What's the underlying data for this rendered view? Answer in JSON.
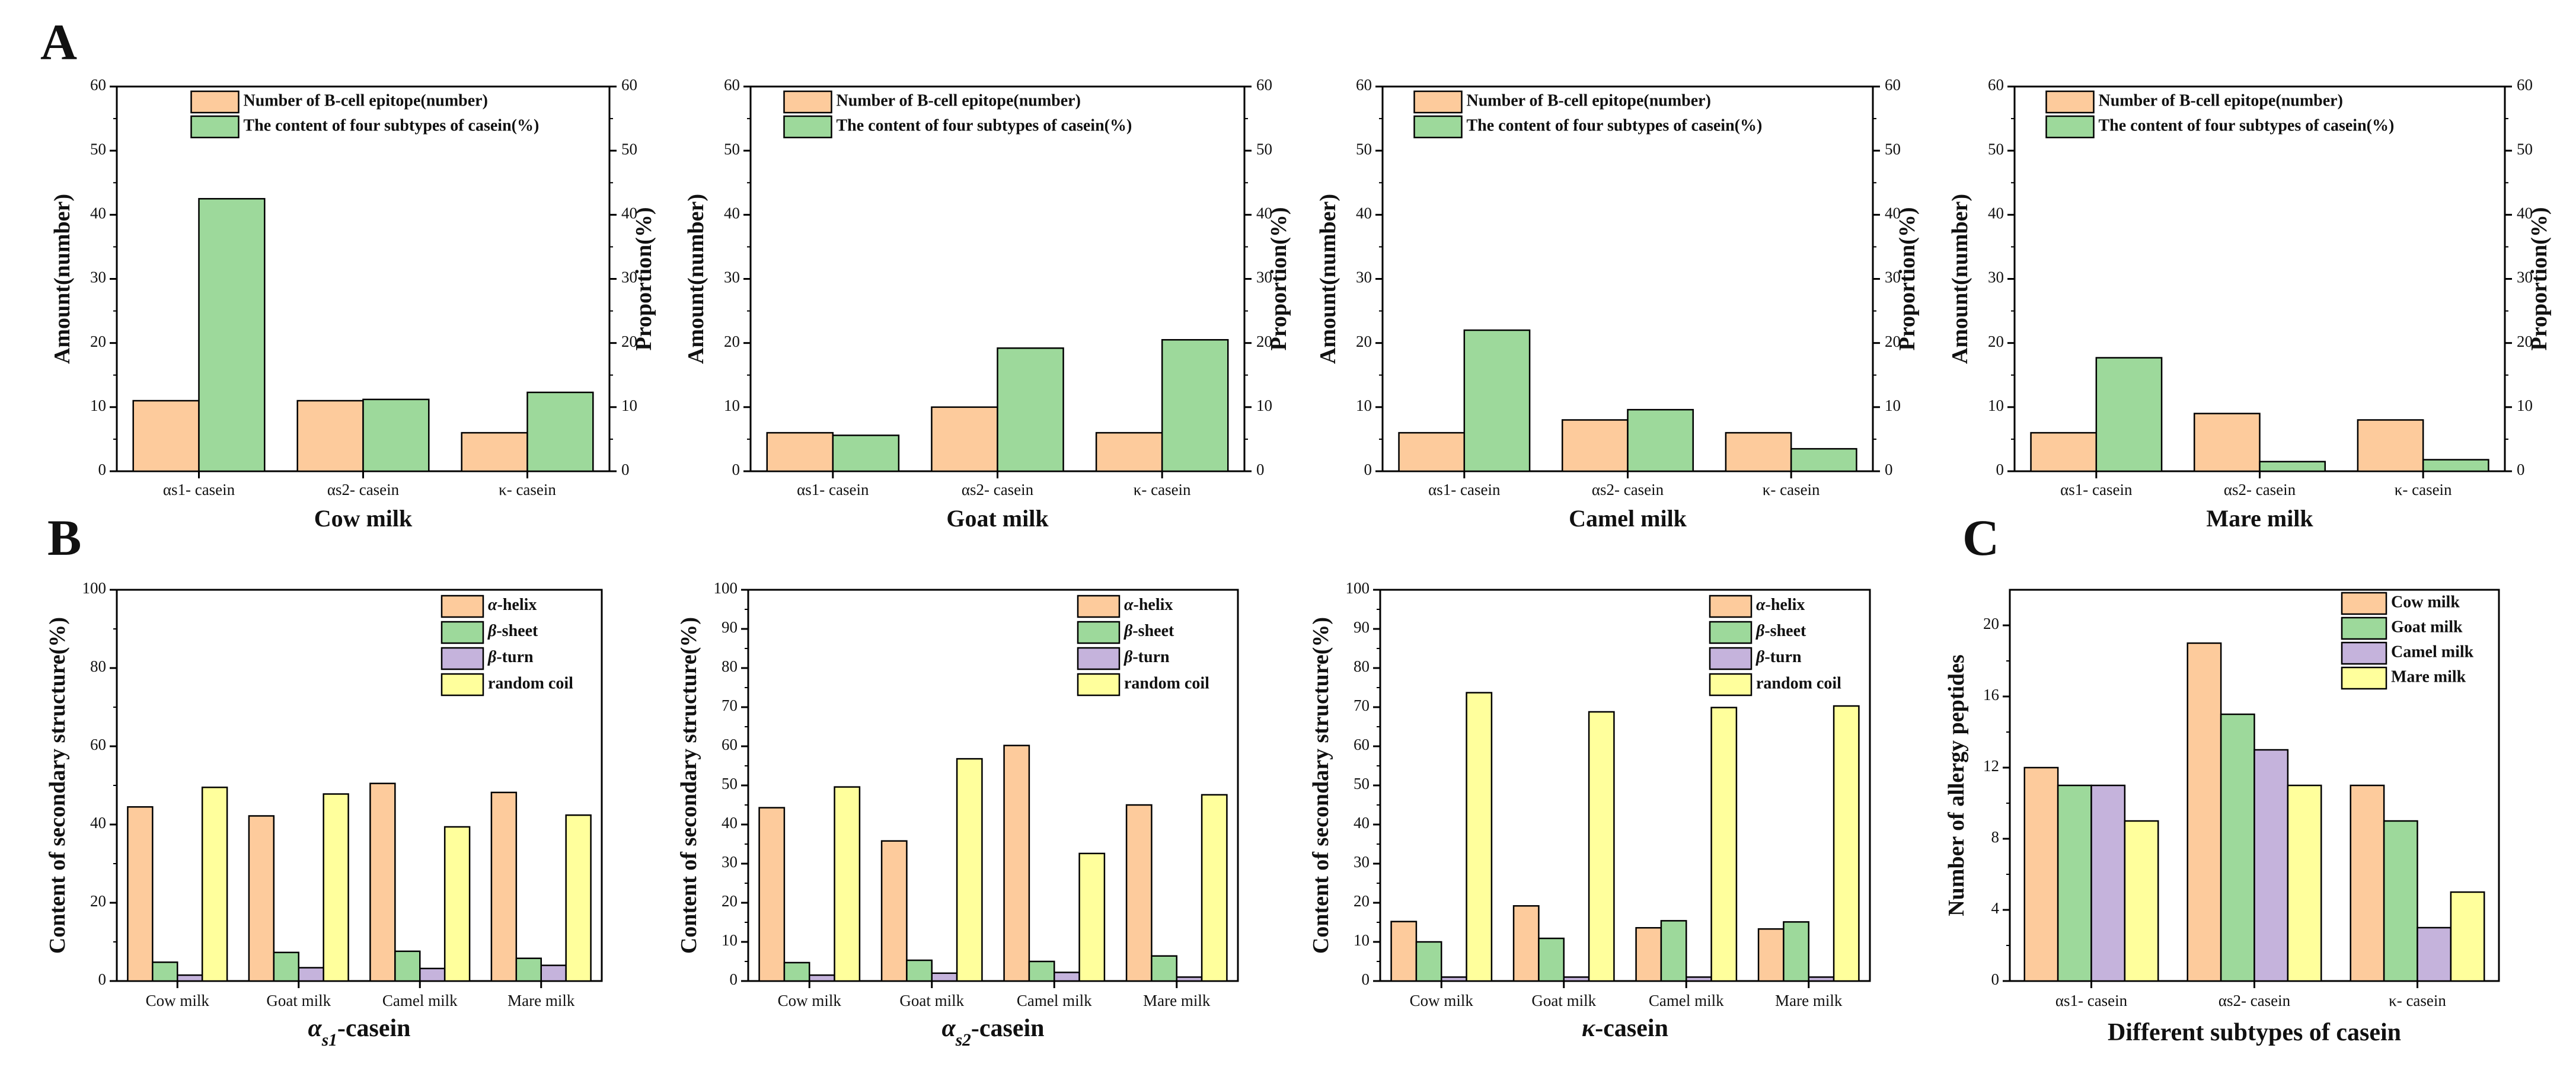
{
  "figure": {
    "panel_labels": [
      "A",
      "B",
      "C"
    ]
  },
  "chart_data": [
    {
      "type": "bar",
      "panel": "A",
      "title": "Cow milk",
      "xlabel": "Cow milk",
      "ylabel": "Amount(number)",
      "y2label": "Proportion(%)",
      "categories": [
        "αs1- casein",
        "αs2- casein",
        "κ- casein"
      ],
      "series": [
        {
          "name": "Number of B-cell epitope(number)",
          "values": [
            11,
            11,
            6
          ],
          "color": "#FDCB9C"
        },
        {
          "name": "The content of four subtypes of casein(%)",
          "values": [
            42.5,
            11.2,
            12.3
          ],
          "color": "#9DD99B"
        }
      ],
      "ylim": [
        0,
        60
      ],
      "yticks": [
        0,
        10,
        20,
        30,
        40,
        50,
        60
      ],
      "legend": "top-center"
    },
    {
      "type": "bar",
      "panel": "A",
      "title": "Goat milk",
      "xlabel": "Goat milk",
      "ylabel": "Amount(number)",
      "y2label": "Proportion(%)",
      "categories": [
        "αs1- casein",
        "αs2- casein",
        "κ- casein"
      ],
      "series": [
        {
          "name": "Number of B-cell epitope(number)",
          "values": [
            6,
            10,
            6
          ],
          "color": "#FDCB9C"
        },
        {
          "name": "The content of four subtypes of casein(%)",
          "values": [
            5.6,
            19.2,
            20.5
          ],
          "color": "#9DD99B"
        }
      ],
      "ylim": [
        0,
        60
      ],
      "yticks": [
        0,
        10,
        20,
        30,
        40,
        50,
        60
      ],
      "legend": "top-center"
    },
    {
      "type": "bar",
      "panel": "A",
      "title": "Camel milk",
      "xlabel": "Camel milk",
      "ylabel": "Amount(number)",
      "y2label": "Proportion(%)",
      "categories": [
        "αs1- casein",
        "αs2- casein",
        "κ- casein"
      ],
      "series": [
        {
          "name": "Number of B-cell epitope(number)",
          "values": [
            6,
            8,
            6
          ],
          "color": "#FDCB9C"
        },
        {
          "name": "The content of four subtypes of casein(%)",
          "values": [
            22,
            9.6,
            3.5
          ],
          "color": "#9DD99B"
        }
      ],
      "ylim": [
        0,
        60
      ],
      "yticks": [
        0,
        10,
        20,
        30,
        40,
        50,
        60
      ],
      "legend": "top-center"
    },
    {
      "type": "bar",
      "panel": "A",
      "title": "Mare milk",
      "xlabel": "Mare milk",
      "ylabel": "Amount(number)",
      "y2label": "Proportion(%)",
      "categories": [
        "αs1- casein",
        "αs2- casein",
        "κ- casein"
      ],
      "series": [
        {
          "name": "Number of B-cell epitope(number)",
          "values": [
            6,
            9,
            8
          ],
          "color": "#FDCB9C"
        },
        {
          "name": "The content of four subtypes of casein(%)",
          "values": [
            17.7,
            1.5,
            1.8
          ],
          "color": "#9DD99B"
        }
      ],
      "ylim": [
        0,
        60
      ],
      "yticks": [
        0,
        10,
        20,
        30,
        40,
        50,
        60
      ],
      "legend": "top-center"
    },
    {
      "type": "bar",
      "panel": "B",
      "title": "αs1-casein",
      "xlabel_main": "α",
      "xlabel_sub": "s1",
      "xlabel_suffix": "-casein",
      "ylabel": "Content of secondary structure(%)",
      "categories": [
        "Cow milk",
        "Goat milk",
        "Camel milk",
        "Mare milk"
      ],
      "series": [
        {
          "name": "α-helix",
          "values": [
            44.5,
            42.2,
            50.5,
            48.2
          ],
          "color": "#FDCB9C"
        },
        {
          "name": "β-sheet",
          "values": [
            4.8,
            7.3,
            7.6,
            5.8
          ],
          "color": "#9DD99B"
        },
        {
          "name": "β-turn",
          "values": [
            1.5,
            3.4,
            3.2,
            4.0
          ],
          "color": "#C5B3DC"
        },
        {
          "name": "random coil",
          "values": [
            49.5,
            47.8,
            39.4,
            42.4
          ],
          "color": "#FFFF9C"
        }
      ],
      "ylim": [
        0,
        100
      ],
      "yticks": [
        0,
        20,
        40,
        60,
        80,
        100
      ],
      "legend": "top-right"
    },
    {
      "type": "bar",
      "panel": "B",
      "title": "αs2-casein",
      "xlabel_main": "α",
      "xlabel_sub": "s2",
      "xlabel_suffix": "-casein",
      "ylabel": "Content of secondary structure(%)",
      "categories": [
        "Cow milk",
        "Goat milk",
        "Camel milk",
        "Mare milk"
      ],
      "series": [
        {
          "name": "α-helix",
          "values": [
            44.3,
            35.8,
            60.2,
            45
          ],
          "color": "#FDCB9C"
        },
        {
          "name": "β-sheet",
          "values": [
            4.7,
            5.3,
            5.0,
            6.4
          ],
          "color": "#9DD99B"
        },
        {
          "name": "β-turn",
          "values": [
            1.5,
            2.0,
            2.2,
            1.0
          ],
          "color": "#C5B3DC"
        },
        {
          "name": "random coil",
          "values": [
            49.6,
            56.8,
            32.6,
            47.6
          ],
          "color": "#FFFF9C"
        }
      ],
      "ylim": [
        0,
        100
      ],
      "yticks": [
        0,
        10,
        20,
        30,
        40,
        50,
        60,
        70,
        80,
        90,
        100
      ],
      "legend": "top-right"
    },
    {
      "type": "bar",
      "panel": "B",
      "title": "κ-casein",
      "xlabel_main": "κ",
      "xlabel_sub": "",
      "xlabel_suffix": "-casein",
      "ylabel": "Content of secondary structure(%)",
      "categories": [
        "Cow milk",
        "Goat milk",
        "Camel milk",
        "Mare milk"
      ],
      "series": [
        {
          "name": "α-helix",
          "values": [
            15.2,
            19.2,
            13.6,
            13.3
          ],
          "color": "#FDCB9C"
        },
        {
          "name": "β-sheet",
          "values": [
            10,
            10.9,
            15.4,
            15.1
          ],
          "color": "#9DD99B"
        },
        {
          "name": "β-turn",
          "values": [
            1.0,
            1.0,
            1.0,
            1.0
          ],
          "color": "#C5B3DC"
        },
        {
          "name": "random coil",
          "values": [
            73.7,
            68.8,
            69.9,
            70.3
          ],
          "color": "#FFFF9C"
        }
      ],
      "ylim": [
        0,
        100
      ],
      "yticks": [
        0,
        10,
        20,
        30,
        40,
        50,
        60,
        70,
        80,
        90,
        100
      ],
      "legend": "top-right"
    },
    {
      "type": "bar",
      "panel": "C",
      "title": "",
      "xlabel": "Different subtypes of casein",
      "ylabel": "Number of allergy peptides",
      "categories": [
        "αs1- casein",
        "αs2- casein",
        "κ- casein"
      ],
      "series": [
        {
          "name": "Cow milk",
          "values": [
            12,
            19,
            11
          ],
          "color": "#FDCB9C"
        },
        {
          "name": "Goat milk",
          "values": [
            11,
            15,
            9
          ],
          "color": "#9DD99B"
        },
        {
          "name": "Camel milk",
          "values": [
            11,
            13,
            3
          ],
          "color": "#C5B3DC"
        },
        {
          "name": "Mare milk",
          "values": [
            9,
            11,
            5
          ],
          "color": "#FFFF9C"
        }
      ],
      "ylim": [
        0,
        22
      ],
      "yticks": [
        0,
        4,
        8,
        12,
        16,
        20
      ],
      "legend": "top-right"
    }
  ]
}
